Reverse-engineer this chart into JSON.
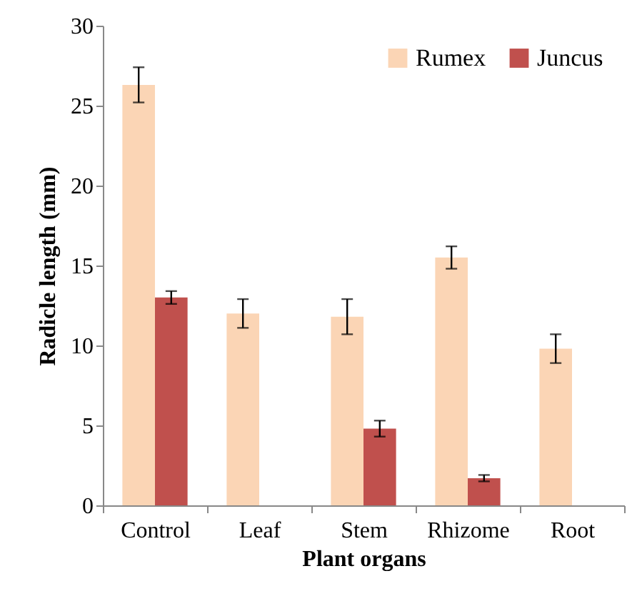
{
  "chart_data": {
    "type": "bar",
    "xlabel": "Plant organs",
    "ylabel": "Radicle length (mm)",
    "categories": [
      "Control",
      "Leaf",
      "Stem",
      "Rhizome",
      "Root"
    ],
    "series": [
      {
        "name": "Rumex",
        "color": "#fbd5b5",
        "values": [
          26.3,
          12.0,
          11.8,
          15.5,
          9.8
        ],
        "errors": [
          1.1,
          0.9,
          1.1,
          0.7,
          0.9
        ]
      },
      {
        "name": "Juncus",
        "color": "#c0504d",
        "values": [
          13.0,
          null,
          4.8,
          1.7,
          null
        ],
        "errors": [
          0.4,
          null,
          0.5,
          0.2,
          null
        ]
      }
    ],
    "ylim": [
      0,
      30
    ],
    "yticks": [
      0,
      5,
      10,
      15,
      20,
      25,
      30
    ],
    "legend": "top right"
  }
}
